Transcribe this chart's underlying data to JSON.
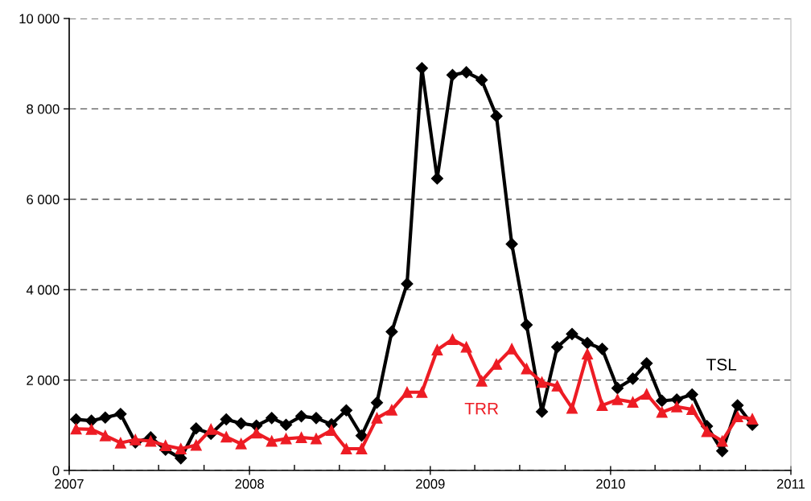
{
  "chart_data": {
    "type": "line",
    "x": [
      "2007-01-15",
      "2007-02-15",
      "2007-03-15",
      "2007-04-15",
      "2007-05-15",
      "2007-06-15",
      "2007-07-15",
      "2007-08-15",
      "2007-09-15",
      "2007-10-15",
      "2007-11-15",
      "2007-12-15",
      "2008-01-15",
      "2008-02-15",
      "2008-03-15",
      "2008-04-15",
      "2008-05-15",
      "2008-06-15",
      "2008-07-15",
      "2008-08-15",
      "2008-09-15",
      "2008-10-15",
      "2008-11-15",
      "2008-12-15",
      "2009-01-15",
      "2009-02-15",
      "2009-03-15",
      "2009-04-15",
      "2009-05-15",
      "2009-06-15",
      "2009-07-15",
      "2009-08-15",
      "2009-09-15",
      "2009-10-15",
      "2009-11-15",
      "2009-12-15",
      "2010-01-15",
      "2010-02-15",
      "2010-03-15",
      "2010-04-15",
      "2010-05-15",
      "2010-06-15",
      "2010-07-15",
      "2010-08-15",
      "2010-09-15",
      "2010-10-15"
    ],
    "series": [
      {
        "name": "TSL",
        "color": "#000000",
        "marker": "diamond",
        "values": [
          1130,
          1100,
          1170,
          1250,
          620,
          730,
          460,
          270,
          930,
          810,
          1130,
          1040,
          990,
          1160,
          1010,
          1200,
          1160,
          1020,
          1330,
          770,
          1500,
          3070,
          4130,
          8900,
          6460,
          8750,
          8810,
          8640,
          7840,
          5010,
          3220,
          1300,
          2730,
          3020,
          2820,
          2690,
          1820,
          2030,
          2370,
          1540,
          1570,
          1680,
          980,
          430,
          1440,
          1010
        ]
      },
      {
        "name": "TRR",
        "color": "#ed1c24",
        "marker": "triangle",
        "values": [
          920,
          910,
          770,
          610,
          680,
          650,
          550,
          480,
          560,
          910,
          740,
          590,
          830,
          650,
          700,
          730,
          700,
          890,
          480,
          480,
          1160,
          1340,
          1730,
          1730,
          2670,
          2900,
          2730,
          1980,
          2350,
          2690,
          2250,
          1950,
          1870,
          1380,
          2580,
          1440,
          1570,
          1510,
          1690,
          1290,
          1410,
          1350,
          860,
          650,
          1190,
          1140
        ]
      }
    ],
    "xlim": [
      "2007-01-01",
      "2011-01-01"
    ],
    "xticks": [
      {
        "value": "2007-01-01",
        "label": "2007"
      },
      {
        "value": "2008-01-01",
        "label": "2008"
      },
      {
        "value": "2009-01-01",
        "label": "2009"
      },
      {
        "value": "2010-01-01",
        "label": "2010"
      },
      {
        "value": "2011-01-01",
        "label": "2011"
      }
    ],
    "ylim": [
      0,
      10000
    ],
    "yticks": [
      {
        "value": 0,
        "label": "0"
      },
      {
        "value": 2000,
        "label": "2 000"
      },
      {
        "value": 4000,
        "label": "4 000"
      },
      {
        "value": 6000,
        "label": "6 000"
      },
      {
        "value": 8000,
        "label": "8 000"
      },
      {
        "value": 10000,
        "label": "10 000"
      }
    ],
    "grid": "y",
    "line_style": "solid",
    "legend": false
  }
}
